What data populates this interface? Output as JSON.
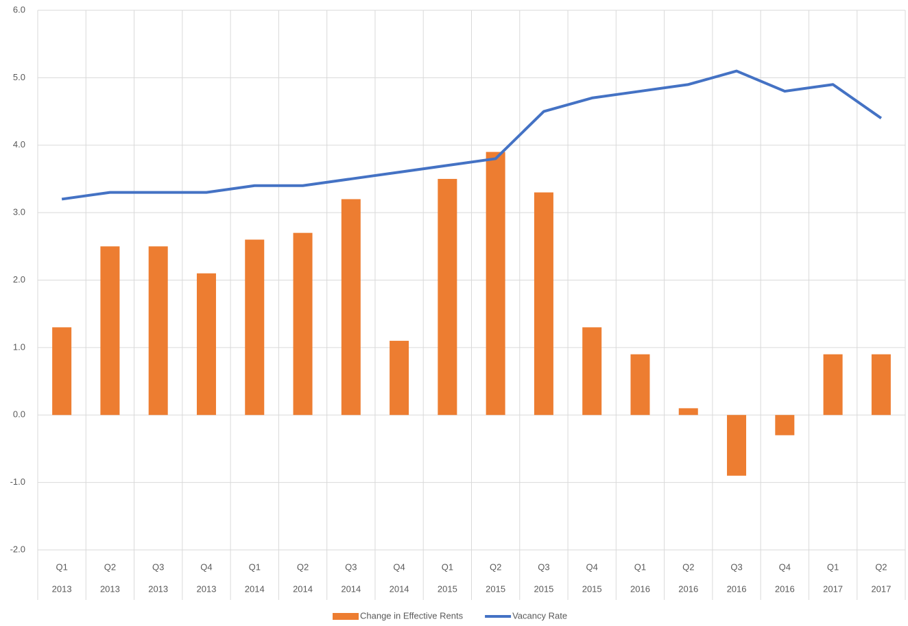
{
  "chart_data": {
    "type": "combo",
    "categories": [
      [
        "Q1",
        "2013"
      ],
      [
        "Q2",
        "2013"
      ],
      [
        "Q3",
        "2013"
      ],
      [
        "Q4",
        "2013"
      ],
      [
        "Q1",
        "2014"
      ],
      [
        "Q2",
        "2014"
      ],
      [
        "Q3",
        "2014"
      ],
      [
        "Q4",
        "2014"
      ],
      [
        "Q1",
        "2015"
      ],
      [
        "Q2",
        "2015"
      ],
      [
        "Q3",
        "2015"
      ],
      [
        "Q4",
        "2015"
      ],
      [
        "Q1",
        "2016"
      ],
      [
        "Q2",
        "2016"
      ],
      [
        "Q3",
        "2016"
      ],
      [
        "Q4",
        "2016"
      ],
      [
        "Q1",
        "2017"
      ],
      [
        "Q2",
        "2017"
      ]
    ],
    "series": [
      {
        "name": "Change in Effective Rents",
        "type": "bar",
        "color": "#ed7d31",
        "values": [
          1.3,
          2.5,
          2.5,
          2.1,
          2.6,
          2.7,
          3.2,
          1.1,
          3.5,
          3.9,
          3.3,
          1.3,
          0.9,
          0.1,
          -0.9,
          -0.3,
          0.9,
          0.9
        ]
      },
      {
        "name": "Vacancy Rate",
        "type": "line",
        "color": "#4472c4",
        "values": [
          3.2,
          3.3,
          3.3,
          3.3,
          3.4,
          3.4,
          3.5,
          3.6,
          3.7,
          3.8,
          4.5,
          4.7,
          4.8,
          4.9,
          5.1,
          4.8,
          4.9,
          4.4
        ]
      }
    ],
    "ylim": [
      -2,
      6
    ],
    "yticks": [
      {
        "value": -2,
        "label": "-2.0"
      },
      {
        "value": -1,
        "label": "-1.0"
      },
      {
        "value": 0,
        "label": "0.0"
      },
      {
        "value": 1,
        "label": "1.0"
      },
      {
        "value": 2,
        "label": "2.0"
      },
      {
        "value": 3,
        "label": "3.0"
      },
      {
        "value": 4,
        "label": "4.0"
      },
      {
        "value": 5,
        "label": "5.0"
      },
      {
        "value": 6,
        "label": "6.0"
      }
    ],
    "grid": true,
    "legend": "bottom"
  }
}
